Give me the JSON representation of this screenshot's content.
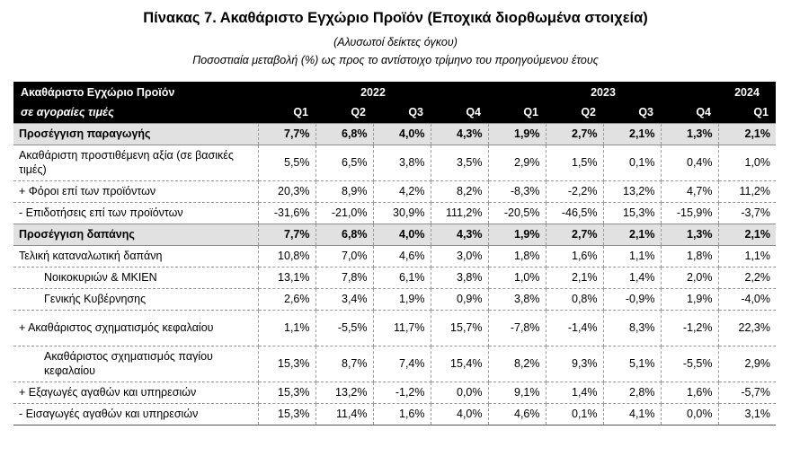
{
  "title": "Πίνακας 7. Ακαθάριστο Εγχώριο Προϊόν (Εποχικά διορθωμένα στοιχεία)",
  "subtitle1": "(Αλυσωτοί δείκτες όγκου)",
  "subtitle2": "Ποσοστιαία μεταβολή (%) ως προς το αντίστοιχο τρίμηνο του προηγούμενου έτους",
  "header": {
    "row1_label": "Ακαθάριστο Εγχώριο Προϊόν",
    "row2_label": "σε αγοραίες τιμές",
    "years": [
      "2022",
      "2023",
      "2024"
    ],
    "quarters": [
      "Q1",
      "Q2",
      "Q3",
      "Q4",
      "Q1",
      "Q2",
      "Q3",
      "Q4",
      "Q1"
    ]
  },
  "rows": [
    {
      "label": "Προσέγγιση παραγωγής",
      "values": [
        "7,7%",
        "6,8%",
        "4,0%",
        "4,3%",
        "1,9%",
        "2,7%",
        "2,1%",
        "1,3%",
        "2,1%"
      ]
    },
    {
      "label": "Ακαθάριστη προστιθέμενη αξία (σε βασικές τιμές)",
      "values": [
        "5,5%",
        "6,5%",
        "3,8%",
        "3,5%",
        "2,9%",
        "1,5%",
        "0,1%",
        "0,4%",
        "1,0%"
      ]
    },
    {
      "label": "+  Φόροι επί των προϊόντων",
      "values": [
        "20,3%",
        "8,9%",
        "4,2%",
        "8,2%",
        "-8,3%",
        "-2,2%",
        "13,2%",
        "4,7%",
        "11,2%"
      ]
    },
    {
      "label": "-   Επιδοτήσεις επί των προϊόντων",
      "values": [
        "-31,6%",
        "-21,0%",
        "30,9%",
        "111,2%",
        "-20,5%",
        "-46,5%",
        "15,3%",
        "-15,9%",
        "-3,7%"
      ]
    },
    {
      "label": "Προσέγγιση δαπάνης",
      "values": [
        "7,7%",
        "6,8%",
        "4,0%",
        "4,3%",
        "1,9%",
        "2,7%",
        "2,1%",
        "1,3%",
        "2,1%"
      ]
    },
    {
      "label": "Τελική καταναλωτική δαπάνη",
      "values": [
        "10,8%",
        "7,0%",
        "4,6%",
        "3,0%",
        "1,8%",
        "1,6%",
        "1,1%",
        "1,8%",
        "1,1%"
      ]
    },
    {
      "label": "Νοικοκυριών & ΜΚΙΕΝ",
      "values": [
        "13,1%",
        "7,8%",
        "6,1%",
        "3,8%",
        "1,0%",
        "2,1%",
        "1,4%",
        "2,0%",
        "2,2%"
      ]
    },
    {
      "label": "Γενικής Κυβέρνησης",
      "values": [
        "2,6%",
        "3,4%",
        "1,9%",
        "0,9%",
        "3,8%",
        "0,8%",
        "-0,9%",
        "1,9%",
        "-4,0%"
      ]
    },
    {
      "label": "+ Ακαθάριστος σχηματισμός κεφαλαίου",
      "values": [
        "1,1%",
        "-5,5%",
        "11,7%",
        "15,7%",
        "-7,8%",
        "-1,4%",
        "8,3%",
        "-1,2%",
        "22,3%"
      ]
    },
    {
      "label": "Ακαθάριστος σχηματισμός παγίου κεφαλαίου",
      "values": [
        "15,3%",
        "8,7%",
        "7,4%",
        "15,4%",
        "8,2%",
        "9,3%",
        "5,1%",
        "-5,5%",
        "2,9%"
      ]
    },
    {
      "label": "+ Εξαγωγές αγαθών και υπηρεσιών",
      "values": [
        "15,3%",
        "13,2%",
        "-1,2%",
        "0,0%",
        "9,1%",
        "1,4%",
        "2,8%",
        "1,6%",
        "-5,7%"
      ]
    },
    {
      "label": "-  Εισαγωγές αγαθών και υπηρεσιών",
      "values": [
        "15,3%",
        "11,4%",
        "1,6%",
        "4,0%",
        "4,6%",
        "0,1%",
        "4,1%",
        "0,0%",
        "3,1%"
      ]
    }
  ]
}
